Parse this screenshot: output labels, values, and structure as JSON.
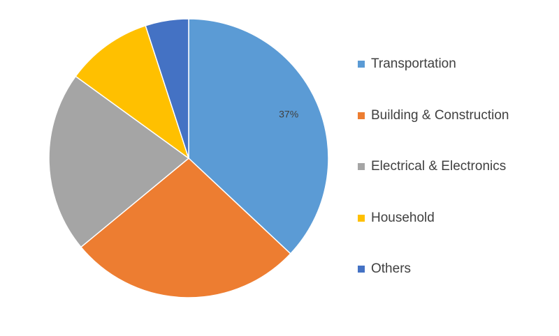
{
  "chart_data": {
    "type": "pie",
    "title": "",
    "legend_position": "right",
    "start_angle_deg": 0,
    "direction": "clockwise",
    "slices": [
      {
        "label": "Transportation",
        "value": 37,
        "color": "#5B9BD5",
        "data_label": "37%"
      },
      {
        "label": "Building & Construction",
        "value": 27,
        "color": "#ED7D31",
        "data_label": ""
      },
      {
        "label": "Electrical & Electronics",
        "value": 21,
        "color": "#A5A5A5",
        "data_label": ""
      },
      {
        "label": "Household",
        "value": 10,
        "color": "#FFC000",
        "data_label": ""
      },
      {
        "label": "Others",
        "value": 5,
        "color": "#4472C4",
        "data_label": ""
      }
    ]
  }
}
